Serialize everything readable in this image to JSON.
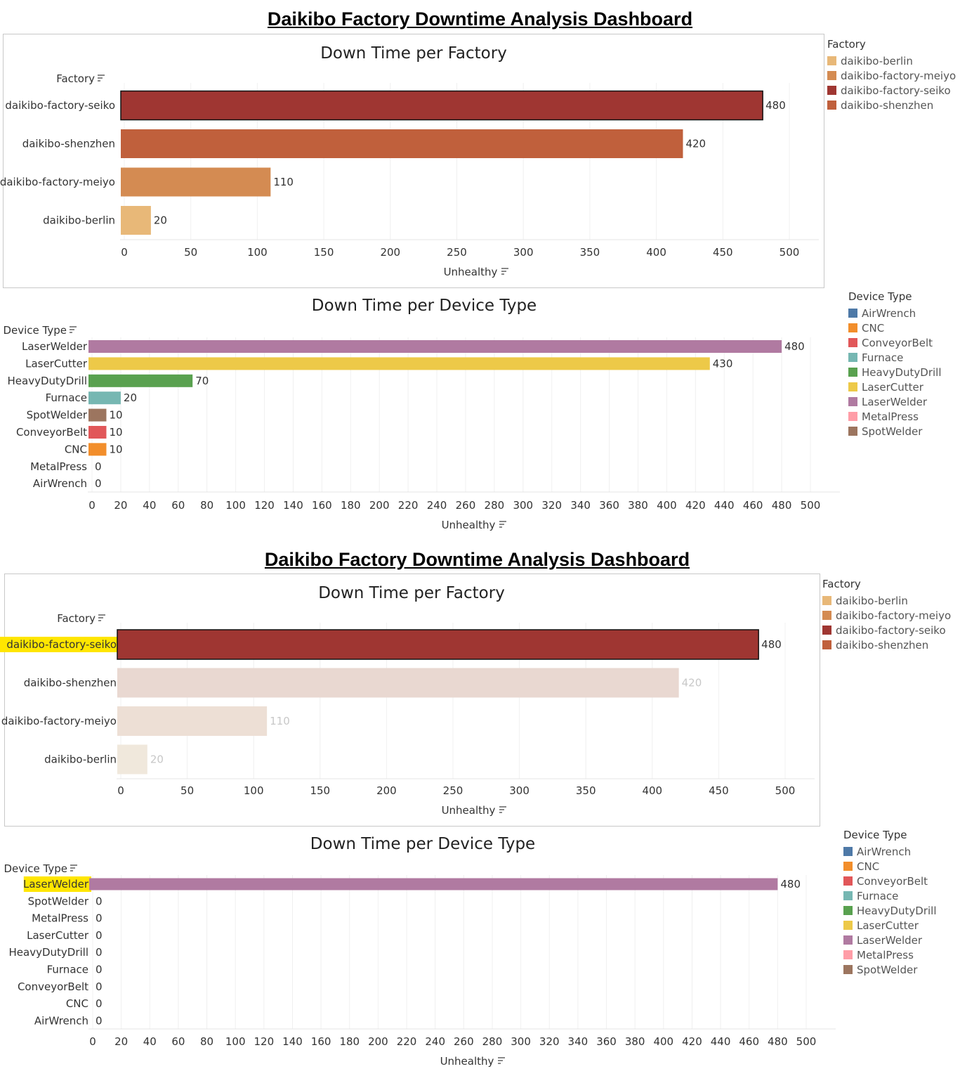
{
  "panels": [
    {
      "dashboard_title": "Daikibo Factory Downtime Analysis Dashboard",
      "highlight": null
    },
    {
      "dashboard_title": "Daikibo Factory Downtime Analysis Dashboard",
      "highlight": {
        "factory": "daikibo-factory-seiko",
        "device": "LaserWelder"
      }
    }
  ],
  "legends": {
    "factory": {
      "title": "Factory",
      "items": [
        {
          "label": "daikibo-berlin",
          "color": "#e8b878"
        },
        {
          "label": "daikibo-factory-meiyo",
          "color": "#d48b52"
        },
        {
          "label": "daikibo-factory-seiko",
          "color": "#9f3632"
        },
        {
          "label": "daikibo-shenzhen",
          "color": "#c0603c"
        }
      ]
    },
    "device": {
      "title": "Device Type",
      "items": [
        {
          "label": "AirWrench",
          "color": "#4e79a7"
        },
        {
          "label": "CNC",
          "color": "#f28e2b"
        },
        {
          "label": "ConveyorBelt",
          "color": "#e15759"
        },
        {
          "label": "Furnace",
          "color": "#76b7b2"
        },
        {
          "label": "HeavyDutyDrill",
          "color": "#59a14f"
        },
        {
          "label": "LaserCutter",
          "color": "#edc948"
        },
        {
          "label": "LaserWelder",
          "color": "#b07aa1"
        },
        {
          "label": "MetalPress",
          "color": "#ff9da7"
        },
        {
          "label": "SpotWelder",
          "color": "#9c755f"
        }
      ]
    }
  },
  "chart_data": [
    {
      "type": "bar",
      "title": "Down Time per Factory",
      "ylabel": "Factory",
      "xlabel": "Unhealthy",
      "categories": [
        "daikibo-factory-seiko",
        "daikibo-shenzhen",
        "daikibo-factory-meiyo",
        "daikibo-berlin"
      ],
      "values": [
        480,
        420,
        110,
        20
      ],
      "colors": [
        "#9f3632",
        "#c0603c",
        "#d48b52",
        "#e8b878"
      ],
      "xticks": [
        0,
        50,
        100,
        150,
        200,
        250,
        300,
        350,
        400,
        450,
        500
      ],
      "xlim": [
        0,
        520
      ],
      "legend": "right"
    },
    {
      "type": "bar",
      "title": "Down Time per Device Type",
      "ylabel": "Device Type",
      "xlabel": "Unhealthy",
      "categories": [
        "LaserWelder",
        "LaserCutter",
        "HeavyDutyDrill",
        "Furnace",
        "SpotWelder",
        "ConveyorBelt",
        "CNC",
        "MetalPress",
        "AirWrench"
      ],
      "values": [
        480,
        430,
        70,
        20,
        10,
        10,
        10,
        0,
        0
      ],
      "colors": [
        "#b07aa1",
        "#edc948",
        "#59a14f",
        "#76b7b2",
        "#9c755f",
        "#e15759",
        "#f28e2b",
        "#ff9da7",
        "#4e79a7"
      ],
      "xticks": [
        0,
        20,
        40,
        60,
        80,
        100,
        120,
        140,
        160,
        180,
        200,
        220,
        240,
        260,
        280,
        300,
        320,
        340,
        360,
        380,
        400,
        420,
        440,
        460,
        480,
        500
      ],
      "xlim": [
        0,
        520
      ],
      "legend": "right"
    },
    {
      "type": "bar",
      "title": "Down Time per Factory",
      "ylabel": "Factory",
      "xlabel": "Unhealthy",
      "categories": [
        "daikibo-factory-seiko",
        "daikibo-shenzhen",
        "daikibo-factory-meiyo",
        "daikibo-berlin"
      ],
      "values": [
        480,
        420,
        110,
        20
      ],
      "colors": [
        "#9f3632",
        "#c0603c",
        "#d48b52",
        "#e8b878"
      ],
      "xticks": [
        0,
        50,
        100,
        150,
        200,
        250,
        300,
        350,
        400,
        450,
        500
      ],
      "xlim": [
        0,
        520
      ],
      "legend": "right",
      "selected": "daikibo-factory-seiko"
    },
    {
      "type": "bar",
      "title": "Down Time per Device Type",
      "ylabel": "Device Type",
      "xlabel": "Unhealthy",
      "categories": [
        "LaserWelder",
        "SpotWelder",
        "MetalPress",
        "LaserCutter",
        "HeavyDutyDrill",
        "Furnace",
        "ConveyorBelt",
        "CNC",
        "AirWrench"
      ],
      "values": [
        480,
        0,
        0,
        0,
        0,
        0,
        0,
        0,
        0
      ],
      "colors": [
        "#b07aa1",
        "#9c755f",
        "#ff9da7",
        "#edc948",
        "#59a14f",
        "#76b7b2",
        "#e15759",
        "#f28e2b",
        "#4e79a7"
      ],
      "xticks": [
        0,
        20,
        40,
        60,
        80,
        100,
        120,
        140,
        160,
        180,
        200,
        220,
        240,
        260,
        280,
        300,
        320,
        340,
        360,
        380,
        400,
        420,
        440,
        460,
        480,
        500
      ],
      "xlim": [
        0,
        520
      ],
      "legend": "right",
      "highlighted_category": "LaserWelder"
    }
  ]
}
